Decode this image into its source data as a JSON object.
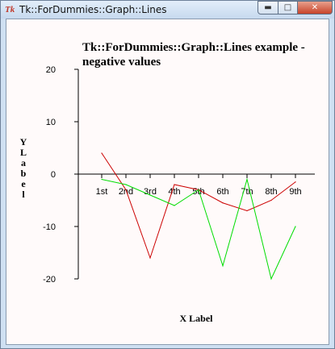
{
  "window": {
    "title": "Tk::ForDummies::Graph::Lines",
    "icon": "tk-feather-icon",
    "controls": {
      "minimize": "▬",
      "maximize": "□",
      "close": "✕"
    }
  },
  "chart_data": {
    "type": "line",
    "title": [
      "Tk::ForDummies::Graph::Lines example -",
      "negative values"
    ],
    "xlabel": "X Label",
    "ylabel": "Y Label",
    "categories": [
      "1st",
      "2nd",
      "3rd",
      "4th",
      "5th",
      "6th",
      "7th",
      "8th",
      "9th"
    ],
    "ylim": [
      -20,
      20
    ],
    "yticks": [
      20,
      10,
      0,
      -10,
      -20
    ],
    "grid": false,
    "series": [
      {
        "color": "#cc0000",
        "values": [
          4,
          -3,
          -16,
          -2,
          -3,
          -5.5,
          -7,
          -5,
          -1.5
        ]
      },
      {
        "color": "#00dd00",
        "values": [
          -1,
          -2,
          -4,
          -6,
          -3,
          -17.5,
          -1,
          -20,
          -10
        ]
      }
    ]
  }
}
